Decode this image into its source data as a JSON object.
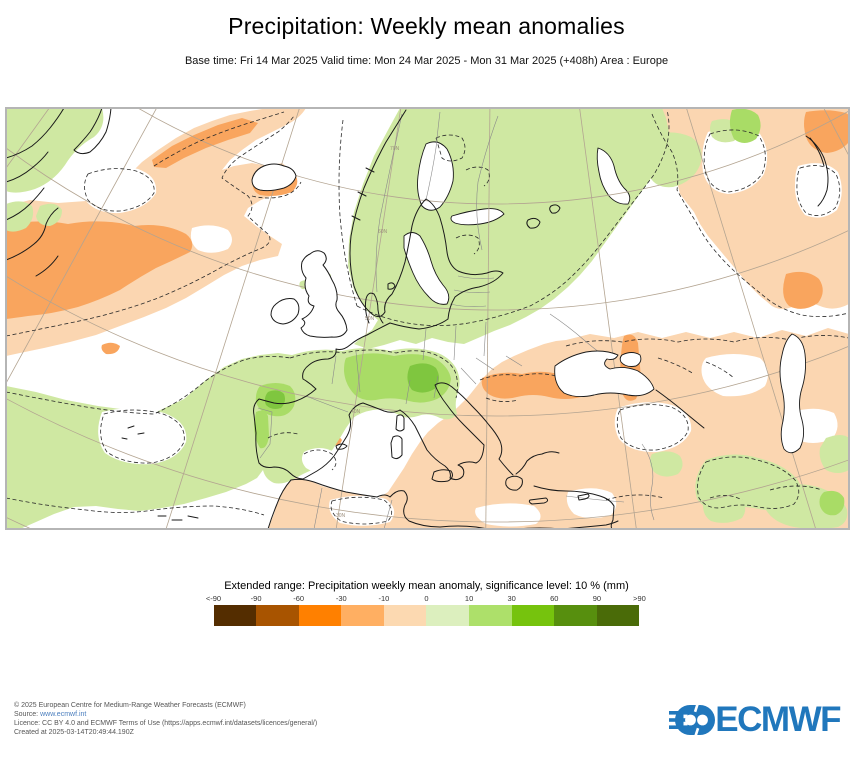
{
  "header": {
    "title": "Precipitation: Weekly mean anomalies",
    "subtitle": "Base time: Fri 14 Mar 2025 Valid time: Mon 24 Mar 2025 - Mon 31 Mar 2025 (+408h) Area : Europe"
  },
  "map": {
    "graticule_labels": [
      "70N",
      "60N",
      "50N",
      "40N",
      "30N"
    ],
    "palette": {
      "negative_light": "#FBD6B1",
      "negative_medium": "#F9A55E",
      "positive_light": "#CFE8A2",
      "positive_medium": "#A9DC66",
      "positive_strong": "#7FC63F"
    }
  },
  "legend": {
    "title": "Extended range: Precipitation weekly mean anomaly, significance level: 10 % (mm)",
    "ticks": [
      "<-90",
      "-90",
      "-60",
      "-30",
      "-10",
      "0",
      "10",
      "30",
      "60",
      "90",
      ">90"
    ],
    "swatches": [
      "#542D00",
      "#A85400",
      "#FF8000",
      "#FFAF62",
      "#FCD9B1",
      "#DCEFBE",
      "#ADE06A",
      "#76C30D",
      "#578F0E",
      "#4A6B08"
    ]
  },
  "footer": {
    "copyright": "© 2025 European Centre for Medium-Range Weather Forecasts (ECMWF)",
    "source_prefix": "Source: ",
    "source_url": "www.ecmwf.int",
    "licence": "Licence: CC BY 4.0 and ECMWF Terms of Use (https://apps.ecmwf.int/datasets/licences/general/)",
    "created": "Created at 2025-03-14T20:49:44.190Z"
  },
  "logo": {
    "wordmark": "ECMWF",
    "brand_color": "#2077BC"
  }
}
